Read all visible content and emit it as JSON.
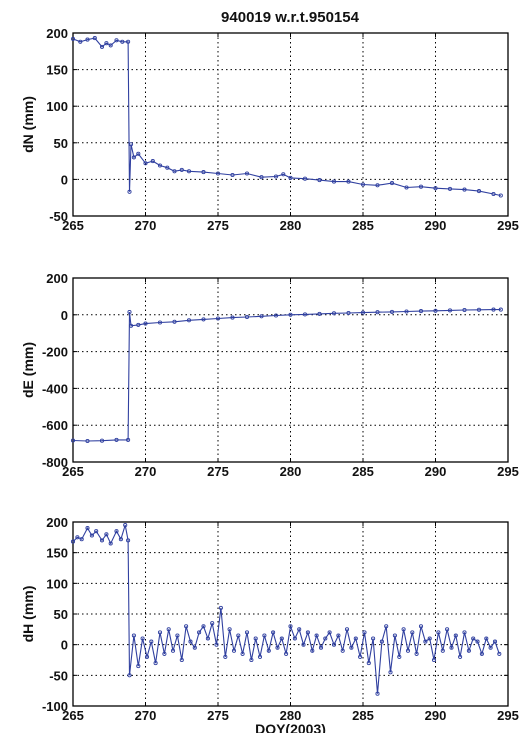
{
  "chart_data": [
    {
      "type": "line",
      "title": "940019 w.r.t.950154",
      "xlabel": "",
      "ylabel": "dN (mm)",
      "xlim": [
        265,
        295
      ],
      "ylim": [
        -50,
        200
      ],
      "xticks": [
        "265",
        "270",
        "275",
        "280",
        "285",
        "290",
        "295"
      ],
      "yticks": [
        "-50",
        "0",
        "50",
        "100",
        "150",
        "200"
      ],
      "grid": true,
      "series_color": "#3040a0",
      "series": [
        {
          "x": [
            265.0,
            265.5,
            266.0,
            266.5,
            267.0,
            267.3,
            267.6,
            268.0,
            268.4,
            268.8,
            268.9,
            269.0,
            269.2,
            269.5,
            270.0,
            270.5,
            271.0,
            271.5,
            272.0,
            272.5,
            273.0,
            274.0,
            275.0,
            276.0,
            277.0,
            278.0,
            279.0,
            279.5,
            280.0,
            281.0,
            282.0,
            283.0,
            284.0,
            285.0,
            286.0,
            287.0,
            288.0,
            289.0,
            290.0,
            291.0,
            292.0,
            293.0,
            294.0,
            294.5
          ],
          "y": [
            192,
            188,
            191,
            193,
            181,
            186,
            183,
            190,
            188,
            188,
            -17,
            48,
            30,
            35,
            22,
            25,
            19,
            16,
            11,
            13,
            11,
            10,
            8,
            6,
            8,
            3,
            4,
            7,
            2,
            1,
            -1,
            -3,
            -3,
            -7,
            -8,
            -5,
            -11,
            -10,
            -12,
            -13,
            -14,
            -16,
            -20,
            -22
          ]
        }
      ]
    },
    {
      "type": "line",
      "title": "",
      "xlabel": "",
      "ylabel": "dE (mm)",
      "xlim": [
        265,
        295
      ],
      "ylim": [
        -800,
        200
      ],
      "xticks": [
        "265",
        "270",
        "275",
        "280",
        "285",
        "290",
        "295"
      ],
      "yticks": [
        "-800",
        "-600",
        "-400",
        "-200",
        "0",
        "200"
      ],
      "grid": true,
      "series_color": "#3040a0",
      "series": [
        {
          "x": [
            265.0,
            266.0,
            267.0,
            268.0,
            268.8,
            268.9,
            269.0,
            269.5,
            270.0,
            271.0,
            272.0,
            273.0,
            274.0,
            275.0,
            276.0,
            277.0,
            278.0,
            279.0,
            280.0,
            281.0,
            282.0,
            283.0,
            284.0,
            285.0,
            286.0,
            287.0,
            288.0,
            289.0,
            290.0,
            291.0,
            292.0,
            293.0,
            294.0,
            294.5
          ],
          "y": [
            -683,
            -686,
            -684,
            -680,
            -680,
            15,
            -60,
            -55,
            -48,
            -42,
            -38,
            -30,
            -25,
            -20,
            -15,
            -12,
            -8,
            -4,
            0,
            2,
            5,
            8,
            10,
            12,
            14,
            16,
            18,
            20,
            22,
            24,
            26,
            27,
            28,
            28
          ]
        }
      ]
    },
    {
      "type": "line",
      "title": "",
      "xlabel": "DOY(2003)",
      "ylabel": "dH (mm)",
      "xlim": [
        265,
        295
      ],
      "ylim": [
        -100,
        200
      ],
      "xticks": [
        "265",
        "270",
        "275",
        "280",
        "285",
        "290",
        "295"
      ],
      "yticks": [
        "-100",
        "-50",
        "0",
        "50",
        "100",
        "150",
        "200"
      ],
      "grid": true,
      "series_color": "#3040a0",
      "series": [
        {
          "x": [
            265.0,
            265.3,
            265.6,
            266.0,
            266.3,
            266.6,
            267.0,
            267.3,
            267.6,
            268.0,
            268.3,
            268.6,
            268.8,
            268.9,
            269.2,
            269.5,
            269.8,
            270.1,
            270.4,
            270.7,
            271.0,
            271.3,
            271.6,
            271.9,
            272.2,
            272.5,
            272.8,
            273.1,
            273.4,
            273.7,
            274.0,
            274.3,
            274.6,
            274.9,
            275.2,
            275.5,
            275.8,
            276.1,
            276.4,
            276.7,
            277.0,
            277.3,
            277.6,
            277.9,
            278.2,
            278.5,
            278.8,
            279.1,
            279.4,
            279.7,
            280.0,
            280.3,
            280.6,
            280.9,
            281.2,
            281.5,
            281.8,
            282.1,
            282.4,
            282.7,
            283.0,
            283.3,
            283.6,
            283.9,
            284.2,
            284.5,
            284.8,
            285.1,
            285.4,
            285.7,
            286.0,
            286.3,
            286.6,
            286.9,
            287.2,
            287.5,
            287.8,
            288.1,
            288.4,
            288.7,
            289.0,
            289.3,
            289.6,
            289.9,
            290.2,
            290.5,
            290.8,
            291.1,
            291.4,
            291.7,
            292.0,
            292.3,
            292.6,
            292.9,
            293.2,
            293.5,
            293.8,
            294.1,
            294.4
          ],
          "y": [
            168,
            175,
            172,
            190,
            178,
            185,
            170,
            180,
            165,
            185,
            172,
            195,
            170,
            -50,
            15,
            -35,
            10,
            -20,
            5,
            -30,
            20,
            -15,
            25,
            -10,
            15,
            -25,
            30,
            5,
            -5,
            20,
            30,
            10,
            35,
            0,
            60,
            -20,
            25,
            -10,
            15,
            -15,
            20,
            -25,
            10,
            -20,
            15,
            -10,
            20,
            -5,
            10,
            -15,
            30,
            10,
            25,
            0,
            20,
            -10,
            15,
            -5,
            10,
            20,
            0,
            15,
            -10,
            25,
            -5,
            10,
            -20,
            20,
            -30,
            10,
            -80,
            5,
            30,
            -45,
            15,
            -20,
            25,
            -10,
            20,
            -15,
            30,
            5,
            10,
            -25,
            20,
            -10,
            25,
            -5,
            15,
            -20,
            20,
            -10,
            10,
            5,
            -15,
            10,
            -5,
            5,
            -15
          ]
        }
      ]
    }
  ]
}
